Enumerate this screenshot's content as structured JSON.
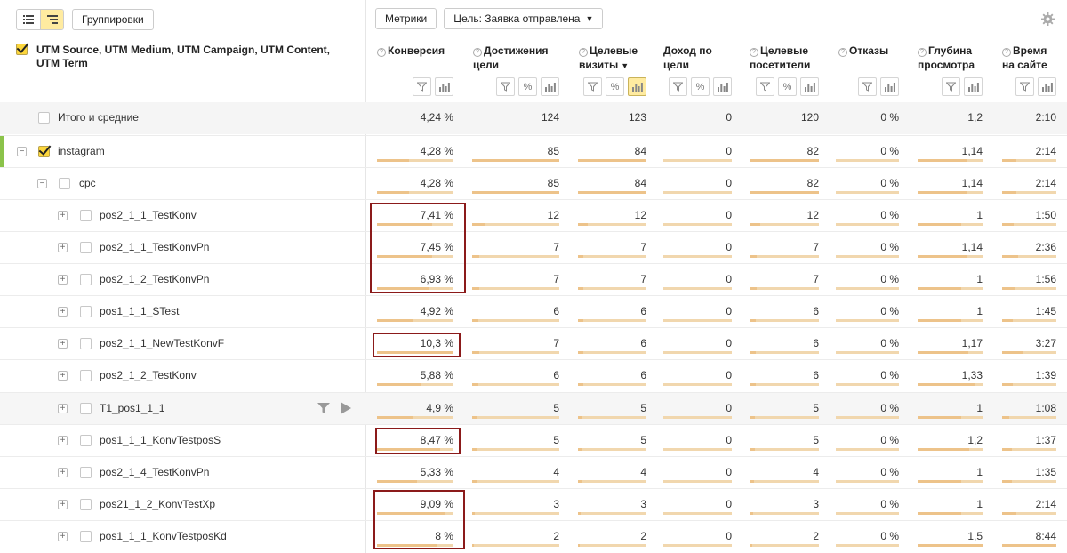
{
  "toolbar": {
    "view_table_icon": "list-view-icon",
    "view_tree_icon": "tree-view-icon",
    "groupings_label": "Группировки",
    "metrics_label": "Метрики",
    "goal_label": "Цель: Заявка отправлена",
    "accent": "#ffeba0"
  },
  "dimension_header": "UTM Source, UTM Medium, UTM Campaign, UTM Content, UTM Term",
  "columns": [
    {
      "label": "Конверсия"
    },
    {
      "label": "Достижения цели"
    },
    {
      "label": "Целевые визиты"
    },
    {
      "label": "Доход по цели"
    },
    {
      "label": "Целевые посетители"
    },
    {
      "label": "Отказы"
    },
    {
      "label": "Глубина просмотра"
    },
    {
      "label": "Время на сайте"
    }
  ],
  "rows": [
    {
      "label": "Итого и средние",
      "values": [
        "4,24 %",
        "124",
        "123",
        "0",
        "120",
        "0 %",
        "1,2",
        "2:10"
      ]
    },
    {
      "label": "instagram",
      "values": [
        "4,28 %",
        "85",
        "84",
        "0",
        "82",
        "0 %",
        "1,14",
        "2:14"
      ]
    },
    {
      "label": "cpc",
      "values": [
        "4,28 %",
        "85",
        "84",
        "0",
        "82",
        "0 %",
        "1,14",
        "2:14"
      ]
    },
    {
      "label": "pos2_1_1_TestKonv",
      "values": [
        "7,41 %",
        "12",
        "12",
        "0",
        "12",
        "0 %",
        "1",
        "1:50"
      ]
    },
    {
      "label": "pos2_1_1_TestKonvPn",
      "values": [
        "7,45 %",
        "7",
        "7",
        "0",
        "7",
        "0 %",
        "1,14",
        "2:36"
      ]
    },
    {
      "label": "pos2_1_2_TestKonvPn",
      "values": [
        "6,93 %",
        "7",
        "7",
        "0",
        "7",
        "0 %",
        "1",
        "1:56"
      ]
    },
    {
      "label": "pos1_1_1_STest",
      "values": [
        "4,92 %",
        "6",
        "6",
        "0",
        "6",
        "0 %",
        "1",
        "1:45"
      ]
    },
    {
      "label": "pos2_1_1_NewTestKonvF",
      "values": [
        "10,3 %",
        "7",
        "6",
        "0",
        "6",
        "0 %",
        "1,17",
        "3:27"
      ]
    },
    {
      "label": "pos2_1_2_TestKonv",
      "values": [
        "5,88 %",
        "6",
        "6",
        "0",
        "6",
        "0 %",
        "1,33",
        "1:39"
      ]
    },
    {
      "label": "T1_pos1_1_1",
      "values": [
        "4,9 %",
        "5",
        "5",
        "0",
        "5",
        "0 %",
        "1",
        "1:08"
      ]
    },
    {
      "label": "pos1_1_1_KonvTestposS",
      "values": [
        "8,47 %",
        "5",
        "5",
        "0",
        "5",
        "0 %",
        "1,2",
        "1:37"
      ]
    },
    {
      "label": "pos2_1_4_TestKonvPn",
      "values": [
        "5,33 %",
        "4",
        "4",
        "0",
        "4",
        "0 %",
        "1",
        "1:35"
      ]
    },
    {
      "label": "pos21_1_2_KonvTestXp",
      "values": [
        "9,09 %",
        "3",
        "3",
        "0",
        "3",
        "0 %",
        "1",
        "2:14"
      ]
    },
    {
      "label": "pos1_1_1_KonvTestposKd",
      "values": [
        "8 %",
        "2",
        "2",
        "0",
        "2",
        "0 %",
        "1,5",
        "8:44"
      ]
    }
  ]
}
